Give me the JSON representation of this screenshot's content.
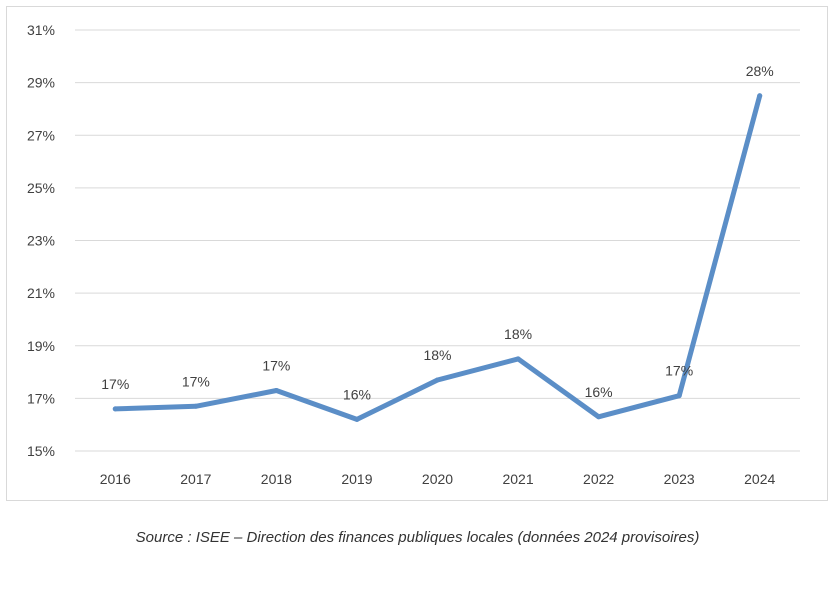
{
  "chart_data": {
    "type": "line",
    "title": "",
    "xlabel": "",
    "ylabel": "",
    "categories": [
      "2016",
      "2017",
      "2018",
      "2019",
      "2020",
      "2021",
      "2022",
      "2023",
      "2024"
    ],
    "series": [
      {
        "values": [
          16.6,
          16.7,
          17.3,
          16.2,
          17.7,
          18.5,
          16.3,
          17.1,
          28.5
        ],
        "labels": [
          "17%",
          "17%",
          "17%",
          "16%",
          "18%",
          "18%",
          "16%",
          "17%",
          "28%"
        ],
        "color": "#5b8ec7"
      }
    ],
    "ylim": [
      15,
      31
    ],
    "yticks": [
      15,
      17,
      19,
      21,
      23,
      25,
      27,
      29,
      31
    ],
    "ytick_labels": [
      "15%",
      "17%",
      "19%",
      "21%",
      "23%",
      "25%",
      "27%",
      "29%",
      "31%"
    ],
    "grid": true,
    "gridline_color": "#d9d9d9"
  },
  "source_text": "Source : ISEE – Direction des finances publiques locales (données 2024 provisoires)"
}
